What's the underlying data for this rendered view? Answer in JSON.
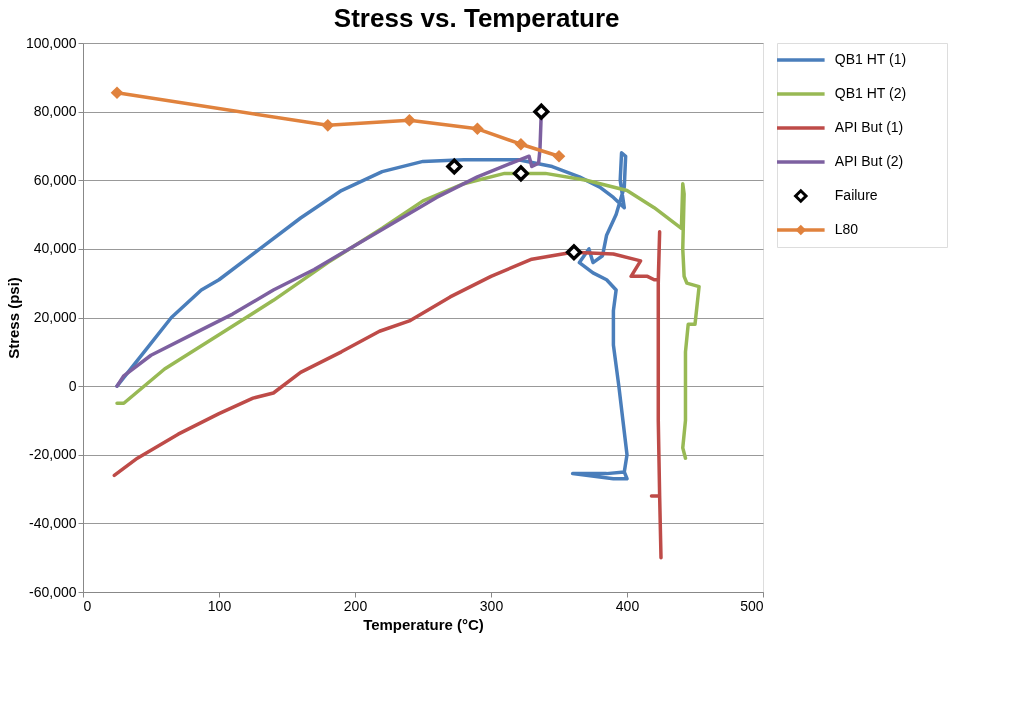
{
  "chart_data": {
    "type": "line",
    "title": "Stress vs. Temperature",
    "xlabel": "Temperature (°C)",
    "ylabel": "Stress (psi)",
    "xlim": [
      0,
      500
    ],
    "xticks": [
      0,
      100,
      200,
      300,
      400,
      500
    ],
    "ylim": [
      -60000,
      100000
    ],
    "yticks": [
      {
        "value": -60000,
        "label": "-60,000"
      },
      {
        "value": -40000,
        "label": "-40,000"
      },
      {
        "value": -20000,
        "label": "-20,000"
      },
      0,
      {
        "value": 20000,
        "label": "20,000"
      },
      {
        "value": 40000,
        "label": "40,000"
      },
      {
        "value": 60000,
        "label": "60,000"
      },
      {
        "value": 80000,
        "label": "80,000"
      },
      {
        "value": 100000,
        "label": "100,000"
      }
    ],
    "grid": "y",
    "legend": "right",
    "marker": "none",
    "line_style": "solid",
    "series": [
      {
        "name": "QB1 HT (1)",
        "color": "#4a7ebb",
        "x": [
          25,
          45,
          65,
          87,
          100,
          130,
          160,
          190,
          220,
          250,
          280,
          320,
          345,
          365,
          380,
          390,
          398,
          395,
          396,
          399,
          398,
          392,
          385,
          382,
          375,
          372,
          365,
          375,
          385,
          392,
          390,
          390,
          394,
          397,
          400,
          398,
          400,
          390,
          370,
          360,
          385,
          398
        ],
        "values": [
          0,
          10000,
          20000,
          28000,
          31000,
          40000,
          49000,
          57000,
          62500,
          65500,
          66000,
          66000,
          64000,
          61000,
          58000,
          55000,
          52000,
          60000,
          68000,
          67000,
          58000,
          50000,
          44000,
          38000,
          36000,
          40000,
          36000,
          33000,
          31000,
          28000,
          22000,
          12000,
          0,
          -10000,
          -20000,
          -25000,
          -27000,
          -27000,
          -26000,
          -25500,
          -25500,
          -25000
        ]
      },
      {
        "name": "QB1 HT (2)",
        "color": "#98b954",
        "x": [
          25,
          30,
          60,
          100,
          140,
          180,
          220,
          250,
          280,
          310,
          340,
          370,
          400,
          420,
          440,
          441,
          442,
          441,
          442,
          444,
          453,
          450,
          445,
          443,
          443,
          443,
          441,
          443
        ],
        "values": [
          -5000,
          -5000,
          5000,
          15000,
          25000,
          36000,
          46000,
          54000,
          59000,
          62000,
          62000,
          60000,
          57000,
          52000,
          46000,
          59000,
          56000,
          40000,
          32000,
          30000,
          29000,
          18000,
          18000,
          10000,
          0,
          -10000,
          -18000,
          -21000
        ]
      },
      {
        "name": "API But (1)",
        "color": "#be4b48",
        "x": [
          23,
          40,
          70,
          100,
          125,
          140,
          160,
          190,
          218,
          240,
          270,
          300,
          330,
          360,
          390,
          410,
          403,
          415,
          420,
          423,
          424,
          423,
          423,
          423,
          424,
          418,
          424,
          425
        ],
        "values": [
          -26000,
          -21000,
          -14000,
          -8000,
          -3500,
          -2000,
          4000,
          10000,
          16000,
          19000,
          26000,
          32000,
          37000,
          39000,
          38500,
          36500,
          32000,
          32000,
          31000,
          31000,
          45000,
          30000,
          10000,
          -10000,
          -32000,
          -32000,
          -32000,
          -50000
        ]
      },
      {
        "name": "API But (2)",
        "color": "#7d60a0",
        "x": [
          25,
          30,
          50,
          80,
          110,
          140,
          170,
          200,
          230,
          260,
          290,
          315,
          328,
          330,
          335,
          336,
          337
        ],
        "values": [
          0,
          3000,
          9000,
          15000,
          21000,
          28000,
          34000,
          41000,
          48000,
          55000,
          61000,
          65000,
          67000,
          64000,
          65000,
          69000,
          80000
        ]
      },
      {
        "name": "Failure",
        "type": "scatter",
        "marker": "diamond",
        "color": "#000000",
        "x": [
          273,
          322,
          337,
          361
        ],
        "values": [
          64000,
          62000,
          80000,
          39000
        ]
      },
      {
        "name": "L80",
        "marker": "diamond",
        "color": "#e0823d",
        "x": [
          25,
          180,
          240,
          290,
          322,
          350
        ],
        "values": [
          85500,
          76000,
          77500,
          75000,
          70500,
          67000
        ]
      }
    ]
  }
}
